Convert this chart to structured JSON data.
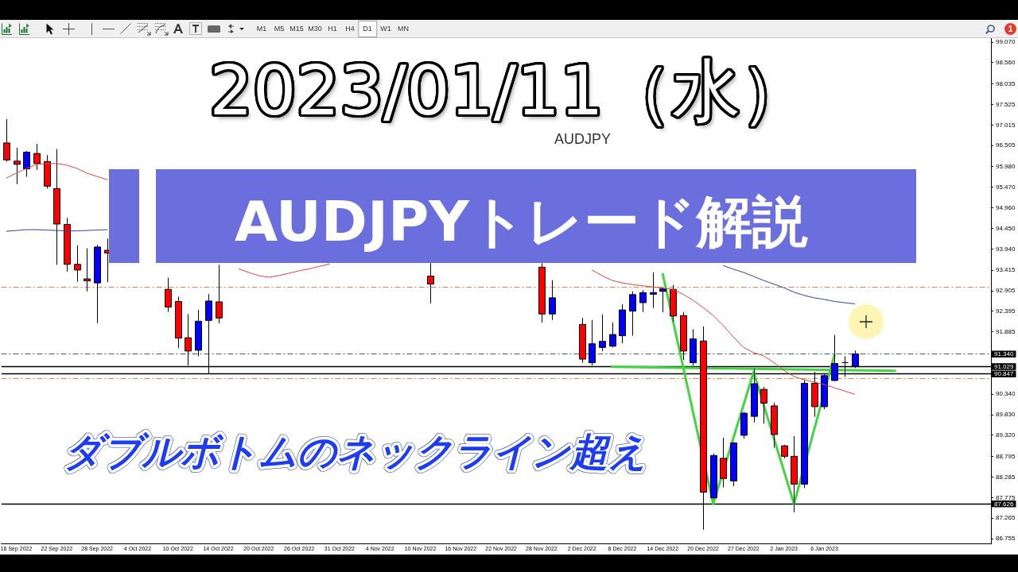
{
  "chart_data": {
    "type": "candlestick",
    "title": "2023/01/11（水）",
    "subtitle": "AUDJPYトレード解説",
    "annotations": [
      "AUDJPY",
      "ダブルボトムのネックライン超え",
      "M1",
      "M5",
      "M15",
      "M30",
      "H1",
      "H4",
      "D1",
      "W1",
      "MN",
      "1"
    ],
    "categories": [
      null,
      "16 Sep 2022",
      null,
      null,
      null,
      "22 Sep 2022",
      null,
      null,
      null,
      "28 Sep 2022",
      null,
      null,
      null,
      "4 Oct 2022",
      null,
      null,
      null,
      "10 Oct 2022",
      null,
      null,
      null,
      "14 Oct 2022",
      null,
      null,
      null,
      "20 Oct 2022",
      null,
      null,
      null,
      "26 Oct 2022",
      null,
      null,
      null,
      "31 Oct 2022",
      null,
      null,
      null,
      "4 Nov 2022",
      null,
      null,
      null,
      "10 Nov 2022",
      null,
      null,
      null,
      "16 Nov 2022",
      null,
      null,
      null,
      "22 Nov 2022",
      null,
      null,
      null,
      "28 Nov 2022",
      null,
      null,
      null,
      "2 Dec 2022",
      null,
      null,
      null,
      "8 Dec 2022",
      null,
      null,
      null,
      "14 Dec 2022",
      null,
      null,
      null,
      "20 Dec 2022",
      null,
      null,
      null,
      "27 Dec 2022",
      null,
      null,
      null,
      "2 Jan 2023",
      null,
      null,
      null,
      "6 Jan 2023",
      null,
      null,
      null,
      null,
      null,
      null,
      null,
      null,
      null,
      null,
      null,
      null,
      null,
      null,
      null,
      null
    ],
    "ohlc": [
      [
        96.57,
        97.16,
        96.11,
        96.15
      ],
      [
        96.12,
        96.45,
        95.55,
        96.04
      ],
      [
        95.93,
        96.37,
        95.73,
        96.34
      ],
      [
        96.31,
        96.55,
        95.9,
        96.06
      ],
      [
        96.11,
        96.27,
        95.44,
        95.5
      ],
      [
        95.44,
        96.42,
        93.55,
        94.56
      ],
      [
        94.55,
        94.71,
        93.38,
        93.56
      ],
      [
        93.56,
        94.03,
        93.13,
        93.42
      ],
      [
        93.2,
        93.96,
        92.89,
        93.15
      ],
      [
        93.1,
        94.04,
        92.1,
        93.99
      ],
      [
        93.91,
        94.2,
        93.12,
        93.84
      ],
      null,
      null,
      null,
      null,
      null,
      [
        92.94,
        93.23,
        92.38,
        92.5
      ],
      [
        92.64,
        92.76,
        91.48,
        91.73
      ],
      [
        91.74,
        92.33,
        91.05,
        91.41
      ],
      [
        91.43,
        92.43,
        91.28,
        92.15
      ],
      [
        92.17,
        92.82,
        90.85,
        92.65
      ],
      [
        92.63,
        93.55,
        92.1,
        92.23
      ],
      null,
      null,
      null,
      null,
      null,
      null,
      null,
      null,
      null,
      null,
      null,
      null,
      null,
      null,
      null,
      null,
      null,
      null,
      null,
      null,
      [
        93.27,
        93.59,
        92.59,
        93.07
      ],
      null,
      null,
      null,
      null,
      null,
      null,
      null,
      null,
      null,
      null,
      [
        93.49,
        93.59,
        92.12,
        92.33
      ],
      [
        92.33,
        93.17,
        92.18,
        92.73
      ],
      null,
      null,
      [
        92.07,
        92.23,
        91.12,
        91.21
      ],
      [
        91.12,
        92.18,
        91.05,
        91.59
      ],
      [
        91.5,
        92.32,
        91.41,
        91.65
      ],
      [
        91.53,
        92.12,
        91.5,
        91.82
      ],
      [
        91.79,
        92.57,
        91.6,
        92.43
      ],
      [
        92.4,
        92.89,
        91.79,
        92.81
      ],
      [
        92.61,
        92.92,
        92.38,
        92.86
      ],
      [
        92.82,
        93.36,
        92.48,
        92.86
      ],
      [
        92.89,
        92.99,
        92.37,
        92.95
      ],
      [
        92.94,
        93.05,
        92.15,
        92.28
      ],
      [
        92.29,
        92.38,
        91.19,
        91.41
      ],
      [
        91.12,
        91.95,
        91.05,
        91.71
      ],
      [
        91.66,
        92.02,
        86.98,
        87.91
      ],
      [
        87.77,
        88.87,
        87.75,
        88.82
      ],
      [
        88.75,
        89.26,
        88.03,
        88.25
      ],
      [
        88.19,
        89.15,
        88.06,
        89.13
      ],
      [
        89.32,
        89.9,
        89.24,
        89.87
      ],
      [
        89.79,
        90.98,
        89.64,
        90.6
      ],
      [
        90.46,
        90.52,
        89.61,
        90.12
      ],
      [
        90.05,
        90.13,
        89.01,
        89.34
      ],
      [
        89.06,
        89.08,
        88.75,
        88.8
      ],
      [
        88.8,
        89.3,
        87.41,
        88.11
      ],
      [
        88.11,
        90.69,
        88.01,
        90.61
      ],
      [
        90.61,
        90.89,
        89.78,
        90.03
      ],
      [
        90.03,
        90.85,
        89.97,
        90.8
      ],
      [
        90.68,
        91.81,
        90.66,
        91.1
      ],
      [
        91.13,
        91.28,
        90.77,
        91.13
      ],
      [
        91.03,
        91.42,
        90.99,
        91.34
      ],
      null,
      null,
      null,
      null,
      null,
      null,
      null,
      null,
      null,
      null,
      null,
      null,
      null
    ],
    "colors": [
      "#ff0000",
      "#ff0000",
      "#0000ff",
      "#ff0000",
      "#ff0000",
      "#ff0000",
      "#ff0000",
      "#ff0000",
      "#ff0000",
      "#0000ff",
      "#ff0000",
      null,
      null,
      null,
      null,
      null,
      "#ff0000",
      "#ff0000",
      "#ff0000",
      "#0000ff",
      "#0000ff",
      "#ff0000",
      null,
      null,
      null,
      null,
      null,
      null,
      null,
      null,
      null,
      null,
      null,
      null,
      null,
      null,
      null,
      null,
      null,
      null,
      null,
      null,
      "#ff0000",
      null,
      null,
      null,
      null,
      null,
      null,
      null,
      null,
      null,
      null,
      "#ff0000",
      "#0000ff",
      null,
      null,
      "#ff0000",
      "#0000ff",
      "#0000ff",
      "#0000ff",
      "#0000ff",
      "#0000ff",
      "#0000ff",
      "#0000ff",
      "#0000ff",
      "#ff0000",
      "#ff0000",
      "#0000ff",
      "#ff0000",
      "#0000ff",
      "#ff0000",
      "#0000ff",
      "#0000ff",
      "#0000ff",
      "#ff0000",
      "#ff0000",
      "#ff0000",
      "#ff0000",
      "#0000ff",
      "#ff0000",
      "#0000ff",
      "#0000ff",
      "#000000",
      "#0000ff",
      null,
      null,
      null,
      null,
      null,
      null,
      null,
      null,
      null,
      null,
      null,
      null,
      null
    ],
    "series": [
      {
        "type": "line",
        "color": "#dd4444",
        "values": [
          95.7,
          95.82,
          95.94,
          96.04,
          96.06,
          96.06,
          96.02,
          95.94,
          95.82,
          95.74,
          95.66,
          null,
          null,
          null,
          null,
          null,
          null,
          null,
          null,
          null,
          null,
          null,
          null,
          93.45,
          93.36,
          93.28,
          93.24,
          93.28,
          93.34,
          93.4,
          93.45,
          93.51,
          93.57,
          null,
          null,
          null,
          null,
          null,
          null,
          null,
          null,
          null,
          null,
          null,
          null,
          null,
          null,
          null,
          null,
          null,
          null,
          null,
          null,
          null,
          null,
          null,
          null,
          null,
          93.42,
          93.28,
          93.16,
          93.1,
          93.06,
          93.03,
          93.0,
          92.97,
          92.94,
          92.82,
          92.67,
          92.49,
          92.29,
          92.04,
          91.76,
          91.5,
          91.37,
          91.29,
          91.13,
          90.93,
          90.78,
          90.7,
          90.64,
          90.58,
          90.5,
          90.42,
          90.34,
          null,
          null,
          null,
          null,
          null,
          null,
          null,
          null,
          null,
          null,
          null,
          null,
          null
        ]
      },
      {
        "type": "line",
        "color": "#3a3f9e",
        "values": [
          94.38,
          94.4,
          94.42,
          94.42,
          94.41,
          94.4,
          94.39,
          94.39,
          94.4,
          94.41,
          94.42,
          null,
          null,
          null,
          null,
          null,
          null,
          null,
          null,
          null,
          null,
          null,
          null,
          null,
          null,
          null,
          null,
          null,
          null,
          null,
          null,
          null,
          null,
          null,
          null,
          null,
          null,
          null,
          null,
          null,
          null,
          null,
          null,
          null,
          null,
          null,
          null,
          null,
          null,
          null,
          null,
          null,
          null,
          null,
          null,
          null,
          null,
          null,
          null,
          null,
          null,
          null,
          null,
          null,
          null,
          null,
          null,
          null,
          null,
          null,
          null,
          93.53,
          93.44,
          93.36,
          93.26,
          93.16,
          93.07,
          92.98,
          92.87,
          92.79,
          92.73,
          92.69,
          92.64,
          92.61,
          92.58,
          null,
          null,
          null,
          null,
          null,
          null,
          null,
          null,
          null,
          null,
          null,
          null,
          null
        ]
      },
      {
        "type": "line",
        "color": "#3fd63f",
        "values": [
          null,
          null,
          null,
          null,
          null,
          null,
          null,
          null,
          null,
          null,
          null,
          null,
          null,
          null,
          null,
          null,
          null,
          null,
          null,
          null,
          null,
          null,
          null,
          null,
          null,
          null,
          null,
          null,
          null,
          null,
          null,
          null,
          null,
          null,
          null,
          null,
          null,
          null,
          null,
          null,
          null,
          null,
          null,
          null,
          null,
          null,
          null,
          null,
          null,
          null,
          null,
          null,
          null,
          null,
          null,
          null,
          null,
          null,
          null,
          null,
          null,
          null,
          null,
          null,
          null,
          93.32,
          null,
          null,
          null,
          null,
          87.62,
          null,
          null,
          null,
          90.89,
          null,
          null,
          null,
          87.62,
          null,
          null,
          null,
          91.31,
          null,
          null,
          null,
          null,
          null,
          null,
          null,
          null,
          null,
          null,
          null,
          null,
          null,
          null,
          null
        ]
      },
      {
        "type": "line",
        "color": "#3fd63f",
        "values": [
          null,
          null,
          null,
          null,
          null,
          null,
          null,
          null,
          null,
          null,
          null,
          null,
          null,
          null,
          null,
          null,
          null,
          null,
          null,
          null,
          null,
          null,
          null,
          null,
          null,
          null,
          null,
          null,
          null,
          null,
          null,
          null,
          null,
          null,
          null,
          null,
          null,
          null,
          null,
          null,
          null,
          null,
          null,
          null,
          null,
          null,
          null,
          null,
          null,
          null,
          null,
          null,
          null,
          null,
          null,
          null,
          null,
          null,
          null,
          null,
          91.02,
          null,
          null,
          null,
          null,
          null,
          null,
          null,
          null,
          null,
          null,
          null,
          null,
          null,
          null,
          null,
          null,
          null,
          null,
          null,
          null,
          null,
          null,
          null,
          null,
          null,
          null,
          null,
          90.92,
          null,
          null,
          null,
          null,
          null,
          null,
          null,
          null,
          null
        ]
      }
    ],
    "ylim": [
      86.64,
      99.17
    ],
    "yticks": [
      {
        "value": 99.07,
        "label": "99.070"
      },
      {
        "value": 98.56,
        "label": "98.560"
      },
      {
        "value": 98.035,
        "label": "98.035"
      },
      {
        "value": 97.525,
        "label": "97.525"
      },
      {
        "value": 97.015,
        "label": "97.015"
      },
      {
        "value": 96.505,
        "label": "96.505"
      },
      {
        "value": 95.98,
        "label": "95.980"
      },
      {
        "value": 95.47,
        "label": "95.470"
      },
      {
        "value": 94.96,
        "label": "94.960"
      },
      {
        "value": 94.45,
        "label": "94.450"
      },
      {
        "value": 93.94,
        "label": "93.940"
      },
      {
        "value": 93.415,
        "label": "93.415"
      },
      {
        "value": 92.905,
        "label": "92.905"
      },
      {
        "value": 92.395,
        "label": "92.395"
      },
      {
        "value": 91.885,
        "label": "91.885"
      },
      {
        "value": 90.34,
        "label": "90.340"
      },
      {
        "value": 89.83,
        "label": "89.830"
      },
      {
        "value": 89.32,
        "label": "89.320"
      },
      {
        "value": 88.795,
        "label": "88.795"
      },
      {
        "value": 88.285,
        "label": "88.285"
      },
      {
        "value": 87.775,
        "label": "87.775"
      },
      {
        "value": 87.265,
        "label": "87.265"
      },
      {
        "value": 86.755,
        "label": "86.755"
      }
    ],
    "ref_lines": [
      {
        "axis": "y",
        "value": 93.0,
        "color": "#e8804a",
        "line_style": "dashed"
      },
      {
        "axis": "y",
        "value": 91.34,
        "label": "91.340",
        "color": "#3b6b4b",
        "line_style": "dashed"
      },
      {
        "axis": "y",
        "value": 91.029,
        "label": "91.029",
        "color": "#000000",
        "line_style": "solid"
      },
      {
        "axis": "y",
        "value": 90.847,
        "label": "90.847",
        "color": "#000000",
        "line_style": "solid"
      },
      {
        "axis": "y",
        "value": 90.74,
        "color": "#e8804a",
        "line_style": "dashed"
      },
      {
        "axis": "y",
        "value": 87.626,
        "label": "87.626",
        "color": "#000000",
        "line_style": "solid"
      }
    ],
    "marker": "none",
    "grid": false
  }
}
